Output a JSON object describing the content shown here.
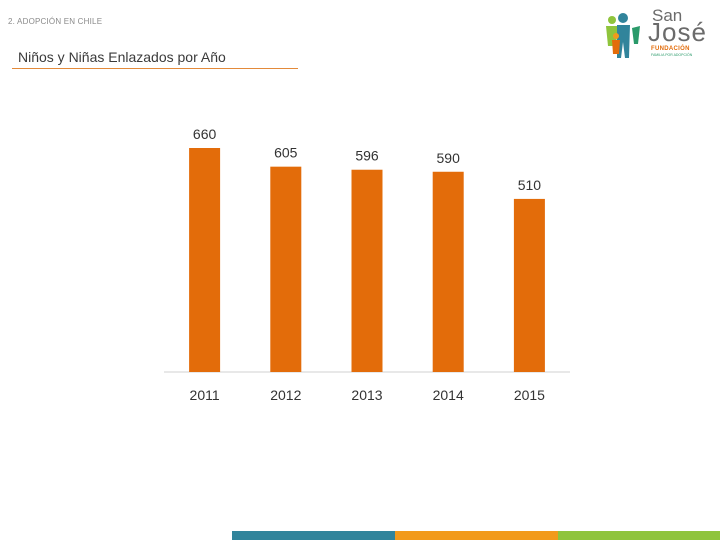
{
  "header": {
    "section_label": "2. ADOPCIÓN EN CHILE",
    "title": "Niños y Niñas Enlazados por Año"
  },
  "logo": {
    "san": "San",
    "jose": "José",
    "fundacion": "FUNDACIÓN",
    "subtitle": "FAMILIA POR ADOPCIÓN"
  },
  "colors": {
    "bar": "#e36c0a",
    "axis": "#d0d0d0",
    "title_rule": "#e38a3a",
    "footer": [
      "#31849b",
      "#f29a1b",
      "#8fc43c"
    ]
  },
  "chart_data": {
    "type": "bar",
    "title": "",
    "xlabel": "",
    "ylabel": "",
    "categories": [
      "2011",
      "2012",
      "2013",
      "2014",
      "2015"
    ],
    "values": [
      660,
      605,
      596,
      590,
      510
    ],
    "data_labels": [
      "660",
      "605",
      "596",
      "590",
      "510"
    ],
    "ylim": [
      0,
      660
    ],
    "grid": false,
    "legend": "none"
  }
}
